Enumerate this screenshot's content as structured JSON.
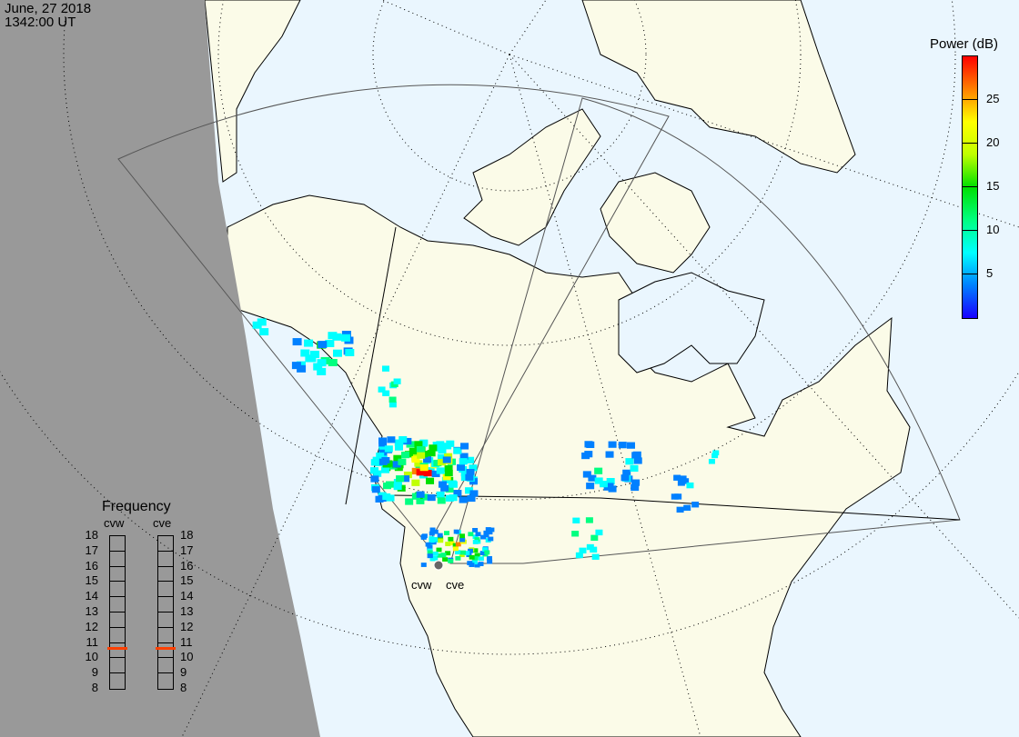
{
  "header": {
    "date": "June, 27 2018",
    "time": "1342:00 UT"
  },
  "colorbar": {
    "title": "Power (dB)",
    "min": 0,
    "max": 30,
    "ticks": [
      "25",
      "20",
      "15",
      "10",
      "5"
    ],
    "tick_values": [
      25,
      20,
      15,
      10,
      5
    ],
    "colors": [
      "#1a00ff",
      "#0080ff",
      "#00ffff",
      "#00ff80",
      "#00e000",
      "#c0ff00",
      "#ffff00",
      "#ff8000",
      "#ff0000"
    ]
  },
  "frequency": {
    "title": "Frequency",
    "radars": [
      {
        "name": "cvw",
        "value_mhz": 10.6
      },
      {
        "name": "cve",
        "value_mhz": 10.6
      }
    ],
    "scale": [
      "18",
      "17",
      "16",
      "15",
      "14",
      "13",
      "12",
      "11",
      "10",
      "9",
      "8"
    ],
    "marker_color": "#ff4000"
  },
  "radars": {
    "west": "cvw",
    "east": "cve"
  },
  "colors": {
    "ocean": "#eaf6fe",
    "land": "#fbfbe8",
    "night": "#999999"
  }
}
